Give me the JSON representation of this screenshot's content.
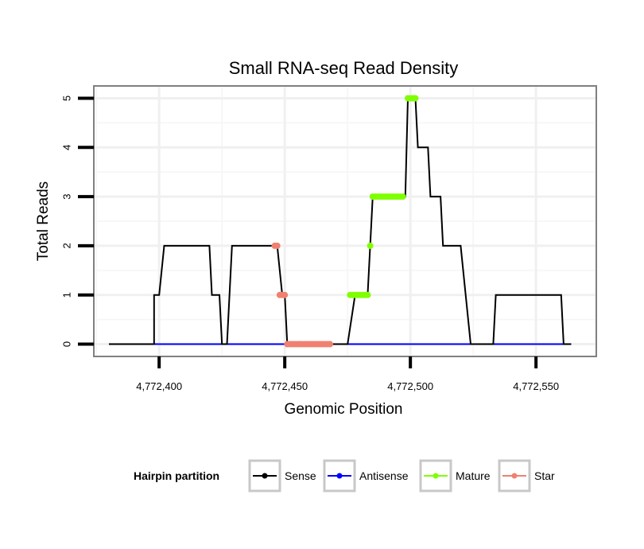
{
  "chart_data": {
    "type": "line",
    "title": "Small RNA-seq Read Density",
    "xlabel": "Genomic Position",
    "ylabel": "Total Reads",
    "xlim": [
      4772374,
      4772574
    ],
    "ylim": [
      -0.25,
      5.25
    ],
    "x_ticks": [
      4772400,
      4772450,
      4772500,
      4772550
    ],
    "x_tick_labels": [
      "4,772,400",
      "4,772,450",
      "4,772,500",
      "4,772,550"
    ],
    "y_ticks": [
      0,
      1,
      2,
      3,
      4,
      5
    ],
    "y_tick_labels": [
      "0",
      "1",
      "2",
      "3",
      "4",
      "5"
    ],
    "grid": true,
    "legend": {
      "title": "Hairpin partition",
      "placement": "bottom",
      "entries": [
        "Sense",
        "Antisense",
        "Mature",
        "Star"
      ]
    },
    "series": [
      {
        "name": "Sense",
        "color": "#000000",
        "style": "line",
        "x": [
          4772380,
          4772398,
          4772398,
          4772400,
          4772400,
          4772402,
          4772420,
          4772421,
          4772424,
          4772425,
          4772427,
          4772429,
          4772447,
          4772449,
          4772450,
          4772451,
          4772475,
          4772478,
          4772481,
          4772483,
          4772484,
          4772485,
          4772495,
          4772498,
          4772499,
          4772502,
          4772503,
          4772507,
          4772508,
          4772512,
          4772513,
          4772519,
          4772520,
          4772522,
          4772522,
          4772524,
          4772525,
          4772526,
          4772533,
          4772534,
          4772560,
          4772561,
          4772564
        ],
        "y": [
          0,
          0,
          1,
          1,
          1,
          2,
          2,
          1,
          1,
          0,
          0,
          2,
          2,
          1,
          1,
          0,
          0,
          1,
          1,
          1,
          2,
          3,
          3,
          3,
          5,
          5,
          4,
          4,
          3,
          3,
          2,
          2,
          2,
          1,
          1,
          0,
          0,
          0,
          0,
          1,
          1,
          0,
          0
        ]
      },
      {
        "name": "Antisense",
        "color": "#0000ff",
        "style": "line",
        "x": [
          4772380,
          4772564
        ],
        "y": [
          0,
          0
        ]
      },
      {
        "name": "Mature",
        "color": "#7fff00",
        "style": "points",
        "x": [
          4772476,
          4772477,
          4772478,
          4772479,
          4772480,
          4772481,
          4772482,
          4772483,
          4772484,
          4772485,
          4772486,
          4772487,
          4772488,
          4772489,
          4772490,
          4772491,
          4772492,
          4772493,
          4772494,
          4772495,
          4772496,
          4772497,
          4772499,
          4772500,
          4772501,
          4772502
        ],
        "y": [
          1,
          1,
          1,
          1,
          1,
          1,
          1,
          1,
          2,
          3,
          3,
          3,
          3,
          3,
          3,
          3,
          3,
          3,
          3,
          3,
          3,
          3,
          5,
          5,
          5,
          5
        ]
      },
      {
        "name": "Star",
        "color": "#f08070",
        "style": "points",
        "x": [
          4772446,
          4772447,
          4772448,
          4772449,
          4772450,
          4772451,
          4772452,
          4772453,
          4772454,
          4772455,
          4772456,
          4772457,
          4772458,
          4772459,
          4772460,
          4772461,
          4772462,
          4772463,
          4772464,
          4772465,
          4772466,
          4772467,
          4772468
        ],
        "y": [
          2,
          2,
          1,
          1,
          1,
          0,
          0,
          0,
          0,
          0,
          0,
          0,
          0,
          0,
          0,
          0,
          0,
          0,
          0,
          0,
          0,
          0,
          0
        ]
      }
    ]
  }
}
